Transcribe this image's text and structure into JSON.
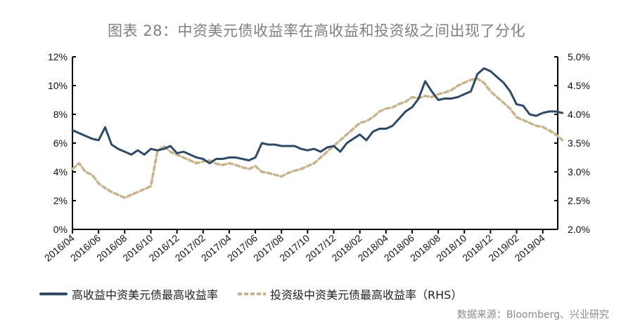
{
  "title": "图表 28：中资美元债收益率在高收益和投资级之间出现了分化",
  "legend": {
    "series1": "高收益中资美元债最高收益率",
    "series2": "投资级中资美元债最高收益率（RHS）"
  },
  "source": "数据来源：Bloomberg、兴业研究",
  "colors": {
    "series1": "#2e4a66",
    "series2": "#c8b48c",
    "axis": "#000000"
  },
  "chart_data": {
    "type": "line",
    "title": "图表 28：中资美元债收益率在高收益和投资级之间出现了分化",
    "xlabel": "",
    "ylabel_left": "",
    "ylabel_right": "",
    "x_tick_labels": [
      "2016/04",
      "2016/06",
      "2016/08",
      "2016/10",
      "2016/12",
      "2017/02",
      "2017/04",
      "2017/06",
      "2017/08",
      "2017/10",
      "2017/12",
      "2018/02",
      "2018/04",
      "2018/06",
      "2018/08",
      "2018/10",
      "2018/12",
      "2019/02",
      "2019/04"
    ],
    "y_left": {
      "ticks": [
        "0%",
        "2%",
        "4%",
        "6%",
        "8%",
        "10%",
        "12%"
      ],
      "range": [
        0,
        12
      ]
    },
    "y_right": {
      "ticks": [
        "2.0%",
        "2.5%",
        "3.0%",
        "3.5%",
        "4.0%",
        "4.5%",
        "5.0%"
      ],
      "range": [
        2.0,
        5.0
      ]
    },
    "grid": false,
    "legend_position": "bottom",
    "x": [
      "2016-04-01",
      "2016-04-15",
      "2016-05-01",
      "2016-05-15",
      "2016-06-01",
      "2016-06-15",
      "2016-07-01",
      "2016-07-15",
      "2016-08-01",
      "2016-08-15",
      "2016-09-01",
      "2016-09-15",
      "2016-10-01",
      "2016-10-15",
      "2016-11-01",
      "2016-11-15",
      "2016-12-01",
      "2016-12-15",
      "2017-01-01",
      "2017-01-15",
      "2017-02-01",
      "2017-02-15",
      "2017-03-01",
      "2017-03-15",
      "2017-04-01",
      "2017-04-15",
      "2017-05-01",
      "2017-05-15",
      "2017-06-01",
      "2017-06-15",
      "2017-07-01",
      "2017-07-15",
      "2017-08-01",
      "2017-08-15",
      "2017-09-01",
      "2017-09-15",
      "2017-10-01",
      "2017-10-15",
      "2017-11-01",
      "2017-11-15",
      "2017-12-01",
      "2017-12-15",
      "2018-01-01",
      "2018-01-15",
      "2018-02-01",
      "2018-02-15",
      "2018-03-01",
      "2018-03-15",
      "2018-04-01",
      "2018-04-15",
      "2018-05-01",
      "2018-05-15",
      "2018-06-01",
      "2018-06-15",
      "2018-07-01",
      "2018-07-15",
      "2018-08-01",
      "2018-08-15",
      "2018-09-01",
      "2018-09-15",
      "2018-10-01",
      "2018-10-15",
      "2018-11-01",
      "2018-11-15",
      "2018-12-01",
      "2018-12-15",
      "2019-01-01",
      "2019-01-15",
      "2019-02-01",
      "2019-02-15",
      "2019-03-01",
      "2019-03-15",
      "2019-04-01",
      "2019-04-15",
      "2019-05-01",
      "2019-05-15"
    ],
    "series": [
      {
        "name": "高收益中资美元债最高收益率",
        "axis": "left",
        "style": "solid",
        "values": [
          6.9,
          6.7,
          6.5,
          6.3,
          6.2,
          7.1,
          5.9,
          5.6,
          5.4,
          5.2,
          5.5,
          5.2,
          5.6,
          5.5,
          5.6,
          5.8,
          5.3,
          5.4,
          5.2,
          5.0,
          4.9,
          4.6,
          4.9,
          4.9,
          5.0,
          5.0,
          4.9,
          4.8,
          5.0,
          6.0,
          5.9,
          5.9,
          5.8,
          5.8,
          5.8,
          5.6,
          5.5,
          5.6,
          5.4,
          5.7,
          5.8,
          5.4,
          6.0,
          6.3,
          6.6,
          6.2,
          6.8,
          7.0,
          7.0,
          7.2,
          7.7,
          8.2,
          8.5,
          9.1,
          10.3,
          9.6,
          9.0,
          9.1,
          9.1,
          9.2,
          9.4,
          9.6,
          10.8,
          11.2,
          11.0,
          10.6,
          10.2,
          9.6,
          8.7,
          8.6,
          8.0,
          7.9,
          8.1,
          8.2,
          8.2,
          8.1
        ]
      },
      {
        "name": "投资级中资美元债最高收益率（RHS）",
        "axis": "right",
        "style": "dashed",
        "values": [
          3.05,
          3.15,
          3.0,
          2.95,
          2.8,
          2.72,
          2.65,
          2.6,
          2.55,
          2.6,
          2.65,
          2.7,
          2.75,
          3.35,
          3.45,
          3.35,
          3.3,
          3.25,
          3.2,
          3.15,
          3.18,
          3.2,
          3.14,
          3.12,
          3.15,
          3.12,
          3.08,
          3.05,
          3.1,
          3.0,
          2.98,
          2.95,
          2.92,
          2.98,
          3.02,
          3.05,
          3.1,
          3.15,
          3.25,
          3.35,
          3.45,
          3.55,
          3.65,
          3.75,
          3.85,
          3.88,
          3.95,
          4.05,
          4.1,
          4.12,
          4.18,
          4.22,
          4.3,
          4.28,
          4.32,
          4.3,
          4.35,
          4.38,
          4.42,
          4.5,
          4.55,
          4.6,
          4.62,
          4.55,
          4.4,
          4.3,
          4.2,
          4.1,
          3.95,
          3.9,
          3.85,
          3.8,
          3.78,
          3.72,
          3.65,
          3.55
        ]
      }
    ]
  }
}
